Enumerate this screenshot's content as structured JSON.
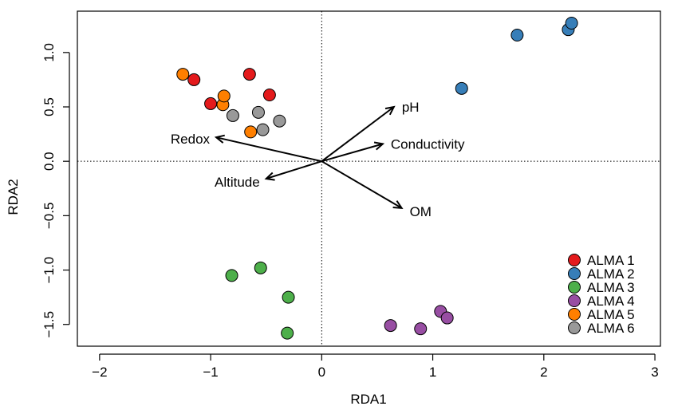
{
  "chart_data": {
    "type": "scatter",
    "xlabel": "RDA1",
    "ylabel": "RDA2",
    "xlim": [
      -2.2,
      3.05
    ],
    "ylim": [
      -1.7,
      1.38
    ],
    "x_ticks": [
      -2,
      -1,
      0,
      1,
      2,
      3
    ],
    "x_tick_labels": [
      "−2",
      "−1",
      "0",
      "1",
      "2",
      "3"
    ],
    "y_ticks": [
      -1.5,
      -1.0,
      -0.5,
      0.0,
      0.5,
      1.0
    ],
    "y_tick_labels": [
      "−1.5",
      "−1.0",
      "−0.5",
      "0.0",
      "0.5",
      "1.0"
    ],
    "reference_lines": {
      "x": 0,
      "y": 0,
      "style": "dotted"
    },
    "legend_position": "bottom-right",
    "series": [
      {
        "name": "ALMA 1",
        "color": "#e41a1c",
        "points": [
          [
            -1.15,
            0.75
          ],
          [
            -1.0,
            0.53
          ],
          [
            -0.65,
            0.8
          ],
          [
            -0.47,
            0.61
          ]
        ]
      },
      {
        "name": "ALMA 2",
        "color": "#377eb8",
        "points": [
          [
            1.26,
            0.67
          ],
          [
            1.76,
            1.16
          ],
          [
            2.22,
            1.21
          ],
          [
            2.25,
            1.27
          ]
        ]
      },
      {
        "name": "ALMA 3",
        "color": "#4daf4a",
        "points": [
          [
            -0.81,
            -1.05
          ],
          [
            -0.55,
            -0.98
          ],
          [
            -0.3,
            -1.25
          ],
          [
            -0.31,
            -1.58
          ]
        ]
      },
      {
        "name": "ALMA 4",
        "color": "#984ea3",
        "points": [
          [
            0.62,
            -1.51
          ],
          [
            0.89,
            -1.54
          ],
          [
            1.07,
            -1.38
          ],
          [
            1.13,
            -1.44
          ]
        ]
      },
      {
        "name": "ALMA 5",
        "color": "#ff7f00",
        "points": [
          [
            -1.25,
            0.8
          ],
          [
            -0.89,
            0.52
          ],
          [
            -0.88,
            0.6
          ],
          [
            -0.64,
            0.27
          ]
        ]
      },
      {
        "name": "ALMA 6",
        "color": "#999999",
        "points": [
          [
            -0.8,
            0.42
          ],
          [
            -0.57,
            0.45
          ],
          [
            -0.53,
            0.29
          ],
          [
            -0.38,
            0.37
          ]
        ]
      }
    ],
    "arrows": [
      {
        "label": "pH",
        "x": 0.65,
        "y": 0.5
      },
      {
        "label": "Conductivity",
        "x": 0.55,
        "y": 0.16
      },
      {
        "label": "Redox",
        "x": -0.95,
        "y": 0.22
      },
      {
        "label": "Altitude",
        "x": -0.5,
        "y": -0.16
      },
      {
        "label": "OM",
        "x": 0.72,
        "y": -0.43
      }
    ]
  }
}
